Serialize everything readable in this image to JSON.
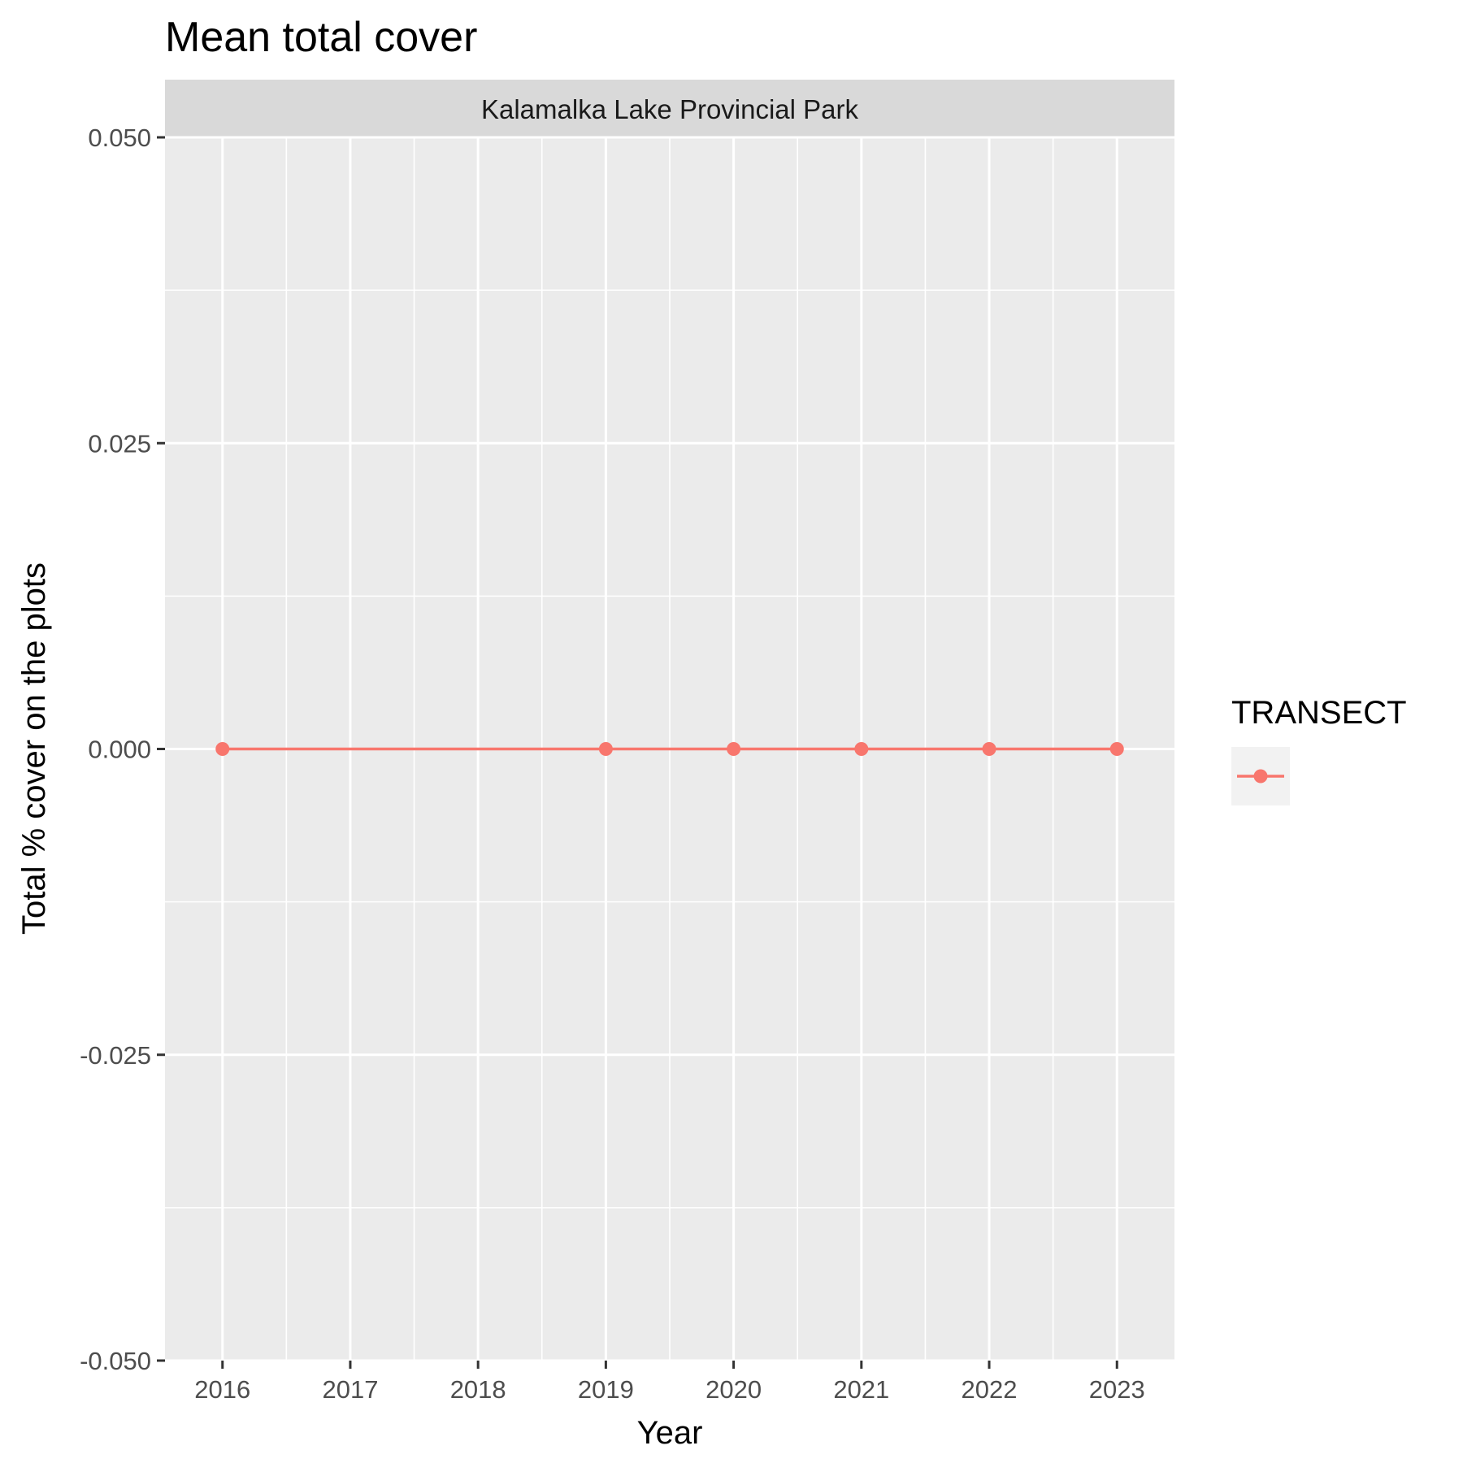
{
  "chart_data": {
    "type": "line",
    "title": "Mean total cover",
    "facet": "Kalamalka Lake Provincial Park",
    "xlabel": "Year",
    "ylabel": "Total % cover on the plots",
    "x": [
      2016,
      2019,
      2020,
      2021,
      2022,
      2023
    ],
    "x_ticks": [
      "2016",
      "2017",
      "2018",
      "2019",
      "2020",
      "2021",
      "2022",
      "2023"
    ],
    "y_ticks": [
      "-0.050",
      "-0.025",
      "0.000",
      "0.025",
      "0.050"
    ],
    "xlim": [
      2015.55,
      2023.45
    ],
    "ylim": [
      -0.05,
      0.05
    ],
    "grid": true,
    "series": [
      {
        "values": [
          0,
          0,
          0,
          0,
          0,
          0
        ],
        "color": "#f8766d"
      }
    ],
    "legend": {
      "title": "TRANSECT",
      "position": "right"
    },
    "colors": {
      "panel_bg": "#ebebeb",
      "strip_bg": "#d9d9d9",
      "grid": "#ffffff",
      "tick": "#333333"
    }
  }
}
